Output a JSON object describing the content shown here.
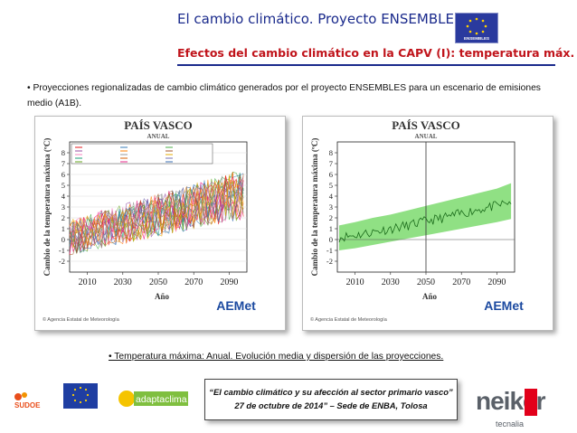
{
  "header": {
    "title": "El cambio climático. Proyecto ENSEMBLES.",
    "subtitle": "Efectos del cambio climático en la CAPV (I): temperatura máx.",
    "eu_logo_text": "ENSEMBLES"
  },
  "intro_bullet": "• Proyecciones regionalizadas de cambio climático generados por el proyecto ENSEMBLES para un escenario de emisiones medio (A1B).",
  "charts": [
    {
      "title": "PAÍS VASCO",
      "subtitle": "ANUAL",
      "ylabel": "Cambio de la temperatura máxima (ºC)",
      "xlabel": "Año",
      "credit": "© Agencia Estatal de Meteorología",
      "logo": "AEMet"
    },
    {
      "title": "PAÍS VASCO",
      "subtitle": "ANUAL",
      "ylabel": "Cambio de la temperatura máxima (ºC)",
      "xlabel": "Año",
      "credit": "© Agencia Estatal de Meteorología",
      "logo": "AEMet"
    }
  ],
  "chart_data": [
    {
      "type": "line",
      "title": "PAÍS VASCO",
      "subtitle": "ANUAL",
      "xlabel": "Año",
      "ylabel": "Cambio de la temperatura máxima (ºC)",
      "xlim": [
        2000,
        2100
      ],
      "ylim": [
        -3,
        9
      ],
      "xticks": [
        2010,
        2030,
        2050,
        2070,
        2090
      ],
      "yticks": [
        -2,
        -1,
        0,
        1,
        2,
        3,
        4,
        5,
        6,
        7,
        8
      ],
      "legend_placement": "top-left",
      "series_count": 25,
      "x": [
        2000,
        2010,
        2020,
        2030,
        2040,
        2050,
        2060,
        2070,
        2080,
        2090,
        2098
      ],
      "envelope_low": [
        -2.0,
        -1.5,
        -1.0,
        -0.7,
        -0.3,
        0.0,
        0.3,
        0.6,
        1.0,
        1.3,
        1.6
      ],
      "envelope_high": [
        2.0,
        2.5,
        3.0,
        3.5,
        4.0,
        4.8,
        5.3,
        6.0,
        6.5,
        7.0,
        7.5
      ]
    },
    {
      "type": "area",
      "title": "PAÍS VASCO",
      "subtitle": "ANUAL",
      "xlabel": "Año",
      "ylabel": "Cambio de la temperatura máxima (ºC)",
      "xlim": [
        2000,
        2100
      ],
      "ylim": [
        -3,
        9
      ],
      "xticks": [
        2010,
        2030,
        2050,
        2070,
        2090
      ],
      "yticks": [
        -2,
        -1,
        0,
        1,
        2,
        3,
        4,
        5,
        6,
        7,
        8
      ],
      "reference_year": 2050,
      "x": [
        2001,
        2010,
        2020,
        2030,
        2040,
        2050,
        2060,
        2070,
        2080,
        2090,
        2098
      ],
      "mean": [
        0.2,
        0.4,
        0.7,
        1.0,
        1.3,
        1.7,
        2.0,
        2.4,
        2.8,
        3.1,
        3.5
      ],
      "low": [
        -1.0,
        -0.8,
        -0.5,
        -0.2,
        0.1,
        0.4,
        0.7,
        1.0,
        1.3,
        1.6,
        1.9
      ],
      "high": [
        1.3,
        1.6,
        2.0,
        2.3,
        2.7,
        3.1,
        3.5,
        3.9,
        4.3,
        4.7,
        5.2
      ]
    }
  ],
  "summary_bullet": "• Temperatura máxima: Anual. Evolución media y dispersión de las proyecciones.",
  "footer": {
    "reference_line1": "“El cambio climático y su afección al sector primario vasco”",
    "reference_line2": "27 de octubre de 2014” – Sede de ENBA, Tolosa",
    "logo_sudoe": "SUDOE",
    "logo_adapta": "adaptaclima II",
    "logo_neiker": "neiker",
    "logo_tecnalia": "tecnalia"
  }
}
